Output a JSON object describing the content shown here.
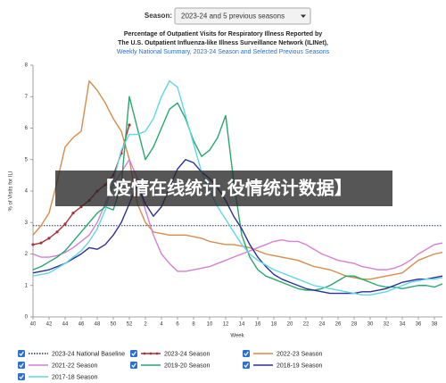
{
  "season_selector": {
    "label": "Season:",
    "value": "2023-24 and 5 previous seasons"
  },
  "overlay_banner": "【疫情在线统计,役情统计数据】",
  "chart_data": {
    "type": "line",
    "title": [
      "Percentage of Outpatient Visits for Respiratory Illness Reported by",
      "The U.S. Outpatient Influenza-like Illness Surveillance Network (ILINet),"
    ],
    "subtitle": "Weekly National Summary, 2023-24 Season and Selected Previous Seasons",
    "x_label": "Week",
    "y_label": "% of Visits for ILI",
    "categories": [
      40,
      null,
      42,
      null,
      44,
      null,
      46,
      null,
      48,
      null,
      50,
      null,
      52,
      null,
      2,
      null,
      4,
      null,
      6,
      null,
      8,
      null,
      10,
      null,
      12,
      null,
      14,
      null,
      16,
      null,
      18,
      null,
      20,
      null,
      22,
      null,
      24,
      null,
      26,
      null,
      28,
      null,
      30,
      null,
      32,
      null,
      34,
      null,
      36,
      null,
      38,
      null
    ],
    "ylim": [
      0,
      8
    ],
    "yticks": [
      0,
      1,
      2,
      3,
      4,
      5,
      6,
      7,
      8
    ],
    "grid": false,
    "baseline": {
      "name": "2023-24 National Baseline",
      "value": 2.9,
      "color": "#1f2f5f"
    },
    "series": [
      {
        "name": "2023-24 Season",
        "color": "#a8303c",
        "markers": true,
        "values": [
          2.3,
          2.35,
          2.5,
          2.7,
          2.95,
          3.3,
          3.5,
          3.7,
          4.0,
          4.2,
          4.5,
          5.2,
          6.1,
          null,
          null,
          null,
          null,
          null,
          null,
          null,
          null,
          null,
          null,
          null,
          null,
          null,
          null,
          null,
          null,
          null,
          null,
          null,
          null,
          null,
          null,
          null,
          null,
          null,
          null,
          null,
          null,
          null,
          null,
          null,
          null,
          null,
          null,
          null,
          null,
          null,
          null,
          null
        ]
      },
      {
        "name": "2022-23 Season",
        "color": "#d98c4a",
        "values": [
          2.6,
          2.9,
          3.3,
          4.3,
          5.4,
          5.7,
          5.9,
          7.5,
          7.2,
          6.8,
          6.3,
          5.9,
          5.0,
          3.6,
          3.0,
          2.7,
          2.65,
          2.6,
          2.6,
          2.6,
          2.55,
          2.5,
          2.4,
          2.35,
          2.3,
          2.3,
          2.25,
          2.2,
          2.1,
          2.0,
          1.95,
          1.9,
          1.85,
          1.8,
          1.7,
          1.6,
          1.55,
          1.5,
          1.4,
          1.3,
          1.25,
          1.2,
          1.2,
          1.25,
          1.3,
          1.35,
          1.4,
          1.6,
          1.8,
          1.9,
          2.0,
          2.05
        ]
      },
      {
        "name": "2021-22 Season",
        "color": "#d77fd4",
        "values": [
          2.0,
          1.9,
          1.9,
          1.95,
          2.05,
          2.2,
          2.4,
          2.6,
          3.0,
          3.6,
          4.2,
          4.6,
          5.0,
          4.4,
          3.4,
          2.6,
          2.0,
          1.7,
          1.45,
          1.45,
          1.5,
          1.55,
          1.6,
          1.7,
          1.8,
          1.9,
          2.0,
          2.1,
          2.2,
          2.3,
          2.4,
          2.45,
          2.4,
          2.4,
          2.3,
          2.15,
          2.0,
          1.9,
          1.8,
          1.75,
          1.7,
          1.6,
          1.55,
          1.5,
          1.5,
          1.55,
          1.65,
          1.8,
          2.0,
          2.15,
          2.3,
          2.35
        ]
      },
      {
        "name": "2019-20 Season",
        "color": "#27a86b",
        "values": [
          1.5,
          1.6,
          1.75,
          1.9,
          2.1,
          2.4,
          2.7,
          3.0,
          3.3,
          3.5,
          3.4,
          4.2,
          7.0,
          6.0,
          5.0,
          5.4,
          6.0,
          6.6,
          6.8,
          6.3,
          5.6,
          5.1,
          5.3,
          5.7,
          6.4,
          4.3,
          2.6,
          1.9,
          1.5,
          1.3,
          1.2,
          1.1,
          1.0,
          0.9,
          0.85,
          0.85,
          0.9,
          1.0,
          1.15,
          1.3,
          1.3,
          1.2,
          1.1,
          1.0,
          0.95,
          0.95,
          0.9,
          0.95,
          1.0,
          1.0,
          0.95,
          1.05
        ]
      },
      {
        "name": "2018-19 Season",
        "color": "#2b2f9e",
        "values": [
          1.4,
          1.45,
          1.5,
          1.6,
          1.7,
          1.85,
          2.0,
          2.2,
          2.15,
          2.3,
          2.6,
          3.0,
          3.6,
          4.2,
          3.6,
          3.2,
          3.5,
          4.1,
          4.7,
          5.0,
          4.9,
          4.6,
          4.4,
          4.1,
          3.7,
          3.2,
          2.8,
          2.3,
          1.9,
          1.6,
          1.35,
          1.2,
          1.1,
          1.0,
          0.9,
          0.85,
          0.8,
          0.75,
          0.75,
          0.75,
          0.75,
          0.8,
          0.8,
          0.85,
          0.9,
          1.0,
          1.1,
          1.15,
          1.2,
          1.2,
          1.25,
          1.3
        ]
      },
      {
        "name": "2017-18 Season",
        "color": "#5fd8e2",
        "values": [
          1.3,
          1.35,
          1.4,
          1.55,
          1.7,
          1.9,
          2.1,
          2.4,
          2.8,
          3.4,
          4.3,
          5.3,
          5.8,
          5.8,
          5.9,
          6.3,
          7.0,
          7.5,
          7.3,
          6.4,
          5.5,
          4.6,
          4.0,
          3.5,
          3.1,
          2.7,
          2.3,
          2.0,
          1.8,
          1.65,
          1.5,
          1.4,
          1.3,
          1.2,
          1.1,
          1.0,
          0.95,
          0.9,
          0.85,
          0.8,
          0.75,
          0.7,
          0.7,
          0.75,
          0.8,
          0.9,
          1.0,
          1.1,
          1.15,
          1.2,
          1.2,
          1.25
        ]
      }
    ]
  }
}
